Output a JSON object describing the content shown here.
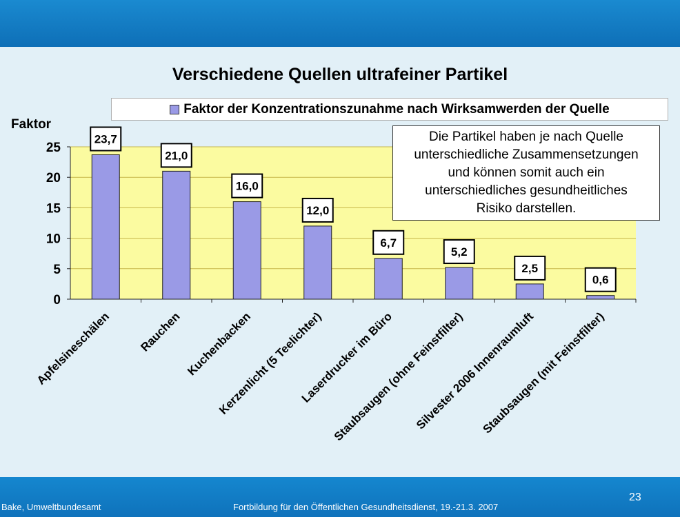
{
  "slide": {
    "footer_left": "Bake, Umweltbundesamt",
    "footer_center": "Fortbildung für den Öffentlichen Gesundheitsdienst, 19.-21.3. 2007",
    "page_number": "23"
  },
  "annotation_lines": [
    "Die Partikel haben je nach Quelle",
    "unterschiedliche Zusammensetzungen",
    "und können somit auch ein",
    "unterschiedliches gesundheitliches",
    "Risiko darstellen."
  ],
  "colors": {
    "bar_fill": "#9a9ae6",
    "plot_background": "#fbfba0",
    "band": "#1580c8"
  },
  "chart_data": {
    "type": "bar",
    "title": "Verschiedene Quellen ultrafeiner Partikel",
    "ylabel": "Faktor",
    "xlabel": "",
    "ylim": [
      0,
      25
    ],
    "yticks": [
      0,
      5,
      10,
      15,
      20,
      25
    ],
    "grid": true,
    "legend_placement": "top",
    "categories": [
      "Apfelsineschälen",
      "Rauchen",
      "Kuchenbacken",
      "Kerzenlicht (5 Teelichter)",
      "Laserdrucker im Büro",
      "Staubsaugen (ohne Feinstfilter)",
      "Silvester 2006 Innenraumluft",
      "Staubsaugen (mit Feinstfilter)"
    ],
    "series": [
      {
        "name": "Faktor der Konzentrationszunahme nach Wirksamwerden der Quelle",
        "values": [
          23.7,
          21.0,
          16.0,
          12.0,
          6.7,
          5.2,
          2.5,
          0.6
        ],
        "labels": [
          "23,7",
          "21,0",
          "16,0",
          "12,0",
          "6,7",
          "5,2",
          "2,5",
          "0,6"
        ]
      }
    ]
  }
}
